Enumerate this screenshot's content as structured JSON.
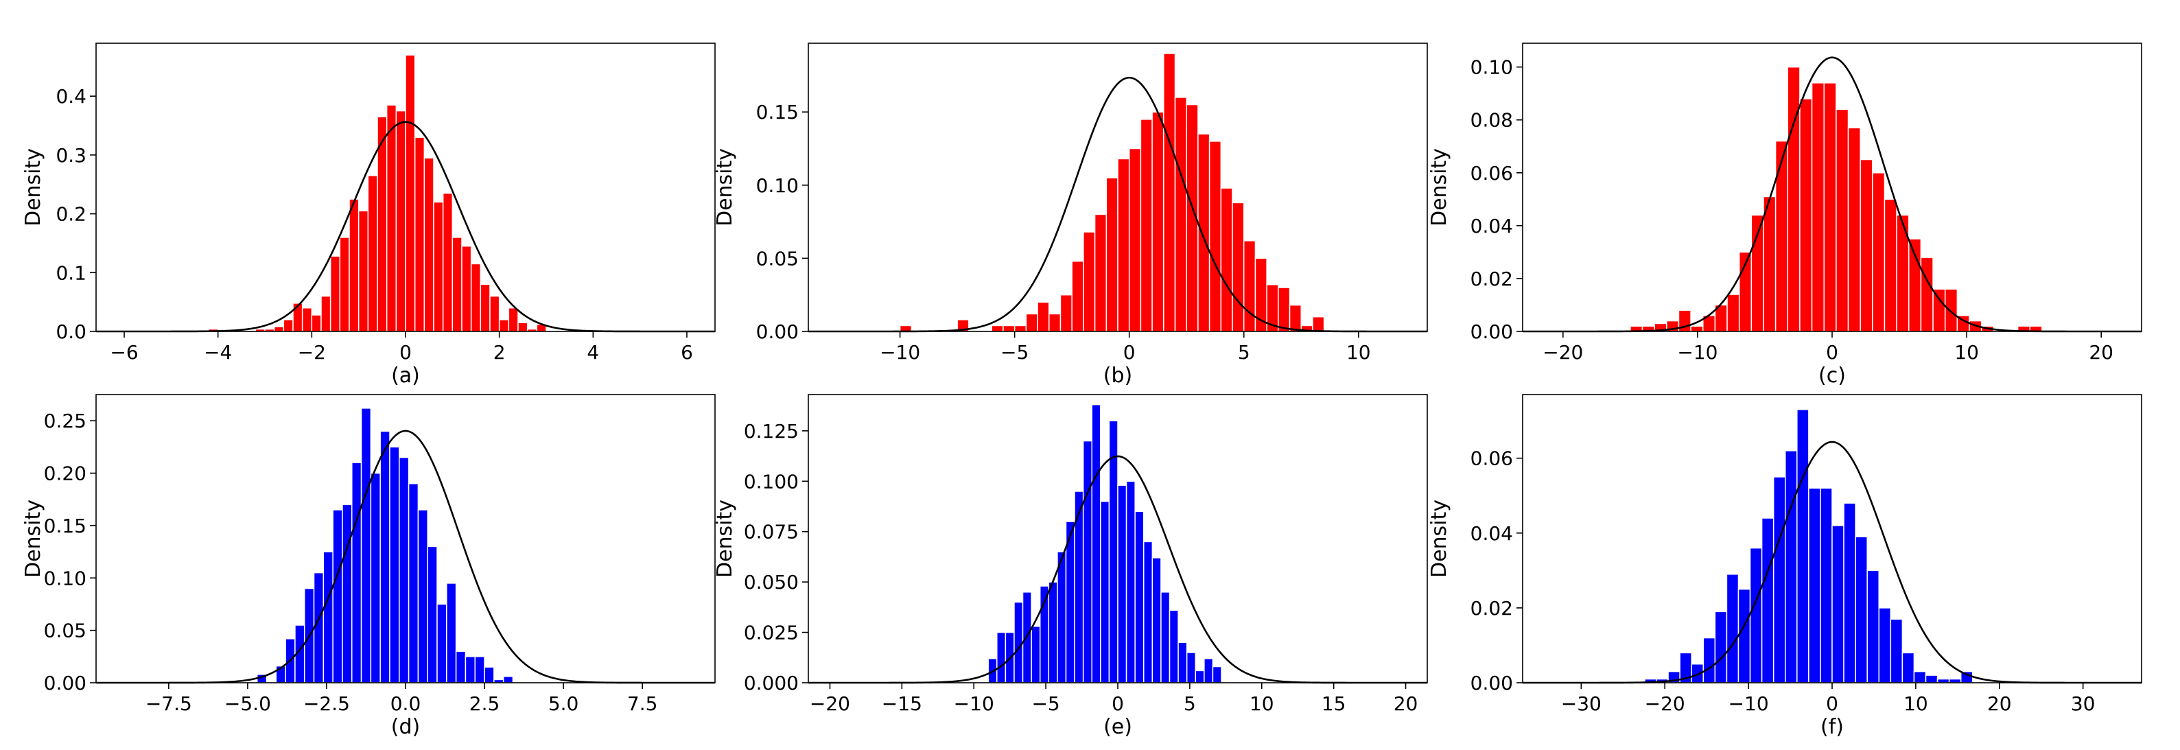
{
  "figure": {
    "background": "#ffffff",
    "curve_color": "#000000"
  },
  "chart_data": [
    {
      "type": "bar",
      "subtype": "histogram-with-density-curve",
      "caption": "(a)",
      "ylabel": "Density",
      "xlabel": "",
      "bar_color": "#ff0000",
      "xlim": [
        -6.6,
        6.6
      ],
      "ylim": [
        0,
        0.49
      ],
      "xticks": [
        -6,
        -4,
        -2,
        0,
        2,
        4,
        6
      ],
      "yticks": [
        0.0,
        0.1,
        0.2,
        0.3,
        0.4
      ],
      "ytick_labels": [
        "0.0",
        "0.1",
        "0.2",
        "0.3",
        "0.4"
      ],
      "bin_start": -4.2,
      "bin_width": 0.2,
      "values": [
        0.004,
        0,
        0,
        0,
        0,
        0.004,
        0.004,
        0.008,
        0.02,
        0.048,
        0.04,
        0.028,
        0.06,
        0.128,
        0.16,
        0.225,
        0.205,
        0.265,
        0.365,
        0.385,
        0.375,
        0.47,
        0.33,
        0.295,
        0.22,
        0.235,
        0.16,
        0.145,
        0.115,
        0.08,
        0.06,
        0.02,
        0.04,
        0.015,
        0.004,
        0.012
      ],
      "curve": {
        "distribution": "normal",
        "mean": 0,
        "sd": 1.12
      }
    },
    {
      "type": "bar",
      "subtype": "histogram-with-density-curve",
      "caption": "(b)",
      "ylabel": "Density",
      "xlabel": "",
      "bar_color": "#ff0000",
      "xlim": [
        -14,
        13
      ],
      "ylim": [
        0,
        0.197
      ],
      "xticks": [
        -10,
        -5,
        0,
        5,
        10
      ],
      "yticks": [
        0.0,
        0.05,
        0.1,
        0.15
      ],
      "ytick_labels": [
        "0.00",
        "0.05",
        "0.10",
        "0.15"
      ],
      "bin_start": -10,
      "bin_width": 0.5,
      "values": [
        0.004,
        0,
        0,
        0,
        0,
        0.008,
        0,
        0,
        0.004,
        0.004,
        0.004,
        0.012,
        0.02,
        0.012,
        0.025,
        0.048,
        0.068,
        0.08,
        0.105,
        0.118,
        0.125,
        0.145,
        0.15,
        0.19,
        0.16,
        0.155,
        0.135,
        0.13,
        0.098,
        0.088,
        0.062,
        0.05,
        0.032,
        0.03,
        0.018,
        0.004,
        0.01
      ],
      "curve": {
        "distribution": "normal",
        "mean": 0,
        "sd": 2.3
      }
    },
    {
      "type": "bar",
      "subtype": "histogram-with-density-curve",
      "caption": "(c)",
      "ylabel": "Density",
      "xlabel": "",
      "bar_color": "#ff0000",
      "xlim": [
        -23,
        23
      ],
      "ylim": [
        0,
        0.109
      ],
      "xticks": [
        -20,
        -10,
        0,
        10,
        20
      ],
      "yticks": [
        0.0,
        0.02,
        0.04,
        0.06,
        0.08,
        0.1
      ],
      "ytick_labels": [
        "0.00",
        "0.02",
        "0.04",
        "0.06",
        "0.08",
        "0.10"
      ],
      "bin_start": -15,
      "bin_width": 0.9,
      "values": [
        0.002,
        0.002,
        0.003,
        0.004,
        0.008,
        0.002,
        0.006,
        0.01,
        0.014,
        0.03,
        0.044,
        0.051,
        0.072,
        0.1,
        0.088,
        0.094,
        0.094,
        0.084,
        0.077,
        0.065,
        0.06,
        0.05,
        0.044,
        0.035,
        0.028,
        0.016,
        0.016,
        0.006,
        0.004,
        0.002,
        0,
        0,
        0.002,
        0.002
      ],
      "curve": {
        "distribution": "normal",
        "mean": 0,
        "sd": 3.85
      }
    },
    {
      "type": "bar",
      "subtype": "histogram-with-density-curve",
      "caption": "(d)",
      "ylabel": "Density",
      "xlabel": "",
      "bar_color": "#0000ff",
      "xlim": [
        -9.8,
        9.8
      ],
      "ylim": [
        0,
        0.275
      ],
      "xticks": [
        -7.5,
        -5.0,
        -2.5,
        0.0,
        2.5,
        5.0,
        7.5
      ],
      "xtick_labels": [
        "−7.5",
        "−5.0",
        "−2.5",
        "0.0",
        "2.5",
        "5.0",
        "7.5"
      ],
      "yticks": [
        0.0,
        0.05,
        0.1,
        0.15,
        0.2,
        0.25
      ],
      "ytick_labels": [
        "0.00",
        "0.05",
        "0.10",
        "0.15",
        "0.20",
        "0.25"
      ],
      "bin_start": -4.7,
      "bin_width": 0.3,
      "values": [
        0.008,
        0,
        0.016,
        0.042,
        0.055,
        0.09,
        0.105,
        0.125,
        0.165,
        0.17,
        0.21,
        0.262,
        0.2,
        0.24,
        0.225,
        0.215,
        0.19,
        0.165,
        0.13,
        0.075,
        0.095,
        0.03,
        0.025,
        0.025,
        0.015,
        0.003,
        0.006
      ],
      "curve": {
        "distribution": "normal",
        "mean": 0,
        "sd": 1.66
      }
    },
    {
      "type": "bar",
      "subtype": "histogram-with-density-curve",
      "caption": "(e)",
      "ylabel": "Density",
      "xlabel": "",
      "bar_color": "#0000ff",
      "xlim": [
        -21.5,
        21.5
      ],
      "ylim": [
        0,
        0.143
      ],
      "xticks": [
        -20,
        -15,
        -10,
        -5,
        0,
        5,
        10,
        15,
        20
      ],
      "xtick_labels": [
        "−20",
        "−15",
        "−10",
        "−5",
        "0",
        "5",
        "10",
        "15",
        "20"
      ],
      "yticks": [
        0.0,
        0.025,
        0.05,
        0.075,
        0.1,
        0.125
      ],
      "ytick_labels": [
        "0.000",
        "0.025",
        "0.050",
        "0.075",
        "0.100",
        "0.125"
      ],
      "bin_start": -9,
      "bin_width": 0.6,
      "values": [
        0.012,
        0.025,
        0.025,
        0.04,
        0.045,
        0.028,
        0.048,
        0.05,
        0.065,
        0.08,
        0.095,
        0.12,
        0.138,
        0.09,
        0.13,
        0.098,
        0.1,
        0.085,
        0.07,
        0.062,
        0.045,
        0.036,
        0.02,
        0.015,
        0.006,
        0.012,
        0.008
      ],
      "curve": {
        "distribution": "normal",
        "mean": 0,
        "sd": 3.55
      }
    },
    {
      "type": "bar",
      "subtype": "histogram-with-density-curve",
      "caption": "(f)",
      "ylabel": "Density",
      "xlabel": "",
      "bar_color": "#0000ff",
      "xlim": [
        -37,
        37
      ],
      "ylim": [
        0,
        0.077
      ],
      "xticks": [
        -30,
        -20,
        -10,
        0,
        10,
        20,
        30
      ],
      "xtick_labels": [
        "−30",
        "−20",
        "−10",
        "0",
        "10",
        "20",
        "30"
      ],
      "yticks": [
        0.0,
        0.02,
        0.04,
        0.06
      ],
      "ytick_labels": [
        "0.00",
        "0.02",
        "0.04",
        "0.06"
      ],
      "bin_start": -22.4,
      "bin_width": 1.4,
      "values": [
        0.001,
        0.001,
        0.003,
        0.008,
        0.005,
        0.012,
        0.019,
        0.029,
        0.025,
        0.036,
        0.044,
        0.055,
        0.062,
        0.073,
        0.052,
        0.052,
        0.042,
        0.048,
        0.039,
        0.03,
        0.02,
        0.017,
        0.008,
        0.003,
        0.002,
        0.001,
        0.001,
        0.003
      ],
      "curve": {
        "distribution": "normal",
        "mean": 0,
        "sd": 6.2
      }
    }
  ]
}
